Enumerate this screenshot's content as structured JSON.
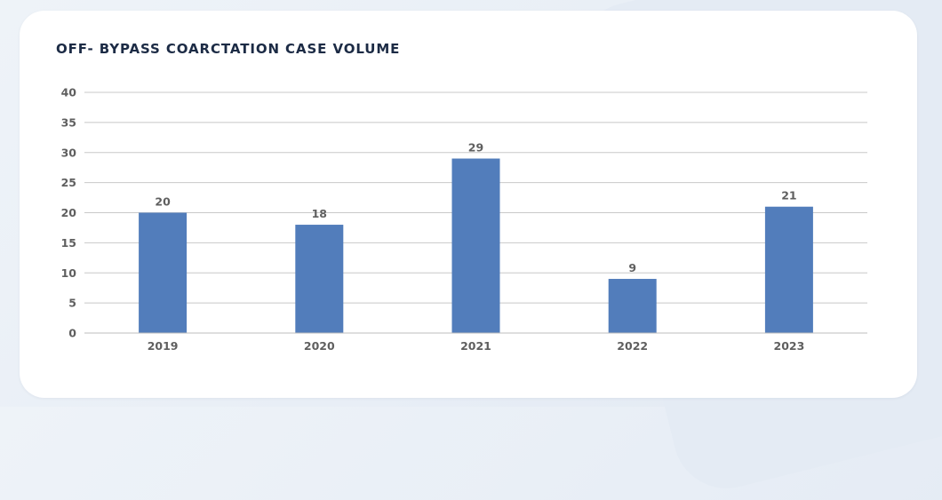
{
  "chart_data": {
    "type": "bar",
    "title": "OFF- BYPASS COARCTATION CASE VOLUME",
    "categories": [
      "2019",
      "2020",
      "2021",
      "2022",
      "2023"
    ],
    "values": [
      20,
      18,
      29,
      9,
      21
    ],
    "ylim": [
      0,
      40
    ],
    "yticks": [
      0,
      5,
      10,
      15,
      20,
      25,
      30,
      35,
      40
    ],
    "grid": true,
    "data_labels": true,
    "xlabel": "",
    "ylabel": "",
    "colors": {
      "bar": "#527dbb",
      "grid": "#c8c8c8",
      "axis": "#bdbdbd",
      "title": "#1c2b45",
      "labels": "#5f5f5f"
    }
  }
}
